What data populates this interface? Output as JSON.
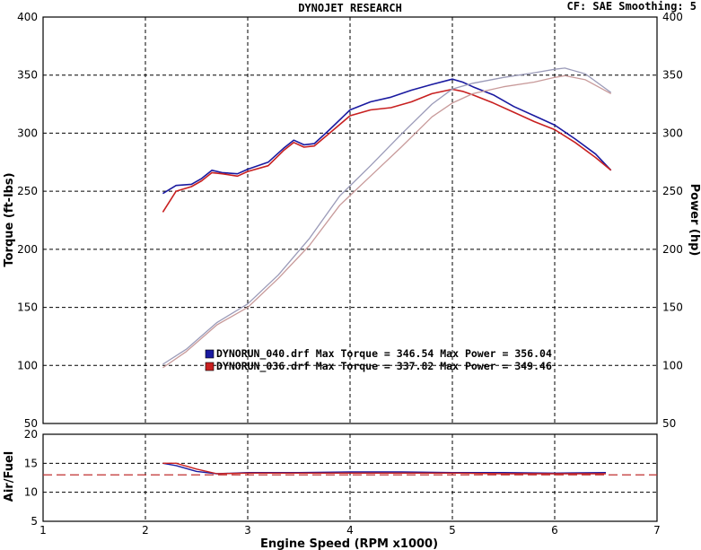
{
  "header": {
    "title": "DYNOJET RESEARCH",
    "settings": "CF: SAE  Smoothing: 5"
  },
  "colors": {
    "run_040": "#1a1aa0",
    "run_036": "#c82020",
    "run_040_power": "#9a9ab8",
    "run_036_power": "#c89a9a",
    "afr_target": "#c03030",
    "grid": "#000000"
  },
  "legend": [
    {
      "text": "DYNORUN_040.drf Max Torque = 346.54    Max Power = 356.04",
      "color": "#1a1aa0"
    },
    {
      "text": "DYNORUN_036.drf Max Torque = 337.82    Max Power = 349.46",
      "color": "#c82020"
    }
  ],
  "chart_data": [
    {
      "type": "line",
      "ylabel_left": "Torque (ft-lbs)",
      "ylabel_right": "Power (hp)",
      "xlim": [
        1,
        7
      ],
      "ylim": [
        50,
        400
      ],
      "yticks": [
        "400",
        "350",
        "300",
        "250",
        "200",
        "150",
        "100",
        "50"
      ],
      "grid": true,
      "series": [
        {
          "name": "DYNORUN_040.drf",
          "measure": "torque",
          "color": "#1a1aa0",
          "points": [
            [
              2.17,
              248
            ],
            [
              2.3,
              255
            ],
            [
              2.45,
              256
            ],
            [
              2.55,
              261
            ],
            [
              2.65,
              268
            ],
            [
              2.75,
              266
            ],
            [
              2.9,
              265
            ],
            [
              3.0,
              269
            ],
            [
              3.2,
              275
            ],
            [
              3.35,
              287
            ],
            [
              3.45,
              294
            ],
            [
              3.55,
              290
            ],
            [
              3.65,
              291
            ],
            [
              3.8,
              303
            ],
            [
              4.0,
              320
            ],
            [
              4.2,
              327
            ],
            [
              4.4,
              331
            ],
            [
              4.6,
              337
            ],
            [
              4.8,
              342
            ],
            [
              5.0,
              346.5
            ],
            [
              5.1,
              344
            ],
            [
              5.2,
              340
            ],
            [
              5.4,
              333
            ],
            [
              5.6,
              323
            ],
            [
              5.8,
              315
            ],
            [
              6.0,
              307
            ],
            [
              6.2,
              295
            ],
            [
              6.4,
              282
            ],
            [
              6.55,
              268
            ]
          ]
        },
        {
          "name": "DYNORUN_036.drf",
          "measure": "torque",
          "color": "#c82020",
          "points": [
            [
              2.17,
              232
            ],
            [
              2.3,
              250
            ],
            [
              2.45,
              254
            ],
            [
              2.55,
              259
            ],
            [
              2.65,
              266
            ],
            [
              2.75,
              265
            ],
            [
              2.9,
              263
            ],
            [
              3.0,
              267
            ],
            [
              3.2,
              272
            ],
            [
              3.35,
              285
            ],
            [
              3.45,
              292
            ],
            [
              3.55,
              288
            ],
            [
              3.65,
              289
            ],
            [
              3.8,
              300
            ],
            [
              4.0,
              315
            ],
            [
              4.2,
              320
            ],
            [
              4.4,
              322
            ],
            [
              4.6,
              327
            ],
            [
              4.8,
              334
            ],
            [
              5.0,
              337.8
            ],
            [
              5.1,
              336
            ],
            [
              5.2,
              333
            ],
            [
              5.4,
              326
            ],
            [
              5.6,
              318
            ],
            [
              5.8,
              310
            ],
            [
              6.0,
              303
            ],
            [
              6.2,
              292
            ],
            [
              6.4,
              279
            ],
            [
              6.55,
              268
            ]
          ]
        },
        {
          "name": "DYNORUN_040.drf",
          "measure": "power",
          "color": "#9a9ab8",
          "points": [
            [
              2.17,
              101
            ],
            [
              2.4,
              114
            ],
            [
              2.7,
              137
            ],
            [
              3.0,
              153
            ],
            [
              3.3,
              178
            ],
            [
              3.6,
              209
            ],
            [
              3.9,
              246
            ],
            [
              4.2,
              272
            ],
            [
              4.5,
              299
            ],
            [
              4.8,
              325
            ],
            [
              5.0,
              338
            ],
            [
              5.2,
              343
            ],
            [
              5.5,
              348
            ],
            [
              5.8,
              352
            ],
            [
              6.0,
              355
            ],
            [
              6.1,
              356
            ],
            [
              6.3,
              351
            ],
            [
              6.55,
              335
            ]
          ]
        },
        {
          "name": "DYNORUN_036.drf",
          "measure": "power",
          "color": "#c89a9a",
          "points": [
            [
              2.17,
              98
            ],
            [
              2.4,
              112
            ],
            [
              2.7,
              135
            ],
            [
              3.0,
              150
            ],
            [
              3.3,
              175
            ],
            [
              3.6,
              203
            ],
            [
              3.9,
              238
            ],
            [
              4.2,
              263
            ],
            [
              4.5,
              288
            ],
            [
              4.8,
              314
            ],
            [
              5.0,
              326
            ],
            [
              5.2,
              334
            ],
            [
              5.5,
              340
            ],
            [
              5.8,
              344
            ],
            [
              6.0,
              348
            ],
            [
              6.1,
              349.5
            ],
            [
              6.3,
              346
            ],
            [
              6.55,
              334
            ]
          ]
        }
      ]
    },
    {
      "type": "line",
      "ylabel": "Air/Fuel",
      "xlabel": "Engine Speed (RPM x1000)",
      "xlim": [
        1,
        7
      ],
      "ylim": [
        5,
        20
      ],
      "xticks": [
        "1",
        "2",
        "3",
        "4",
        "5",
        "6",
        "7"
      ],
      "yticks": [
        "20",
        "15",
        "10",
        "5"
      ],
      "grid": true,
      "target_afr": 13.0,
      "series": [
        {
          "name": "DYNORUN_040.drf",
          "color": "#1a1aa0",
          "points": [
            [
              2.17,
              15.0
            ],
            [
              2.3,
              14.6
            ],
            [
              2.5,
              13.6
            ],
            [
              2.7,
              13.2
            ],
            [
              3.0,
              13.4
            ],
            [
              3.5,
              13.4
            ],
            [
              4.0,
              13.5
            ],
            [
              4.5,
              13.5
            ],
            [
              5.0,
              13.4
            ],
            [
              5.5,
              13.4
            ],
            [
              6.0,
              13.3
            ],
            [
              6.5,
              13.4
            ]
          ]
        },
        {
          "name": "DYNORUN_036.drf",
          "color": "#c82020",
          "points": [
            [
              2.17,
              15.0
            ],
            [
              2.3,
              15.0
            ],
            [
              2.5,
              14.0
            ],
            [
              2.7,
              13.2
            ],
            [
              3.0,
              13.3
            ],
            [
              3.5,
              13.3
            ],
            [
              4.0,
              13.3
            ],
            [
              4.5,
              13.3
            ],
            [
              5.0,
              13.3
            ],
            [
              5.5,
              13.2
            ],
            [
              6.0,
              13.2
            ],
            [
              6.5,
              13.2
            ]
          ]
        }
      ]
    }
  ]
}
